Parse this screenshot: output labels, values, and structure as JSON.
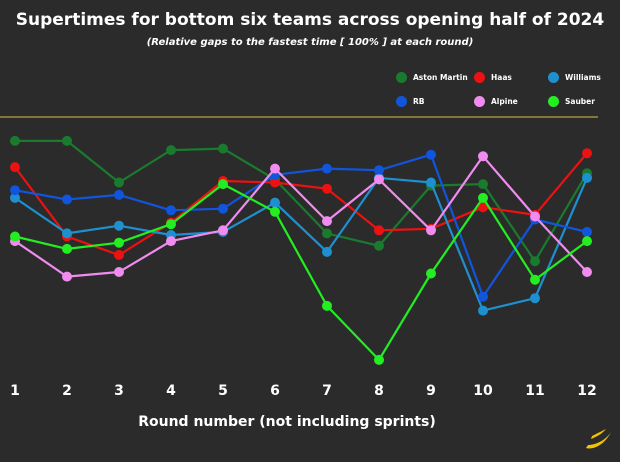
{
  "title": "Supertimes for bottom six teams across opening half of 2024",
  "subtitle": "(Relative gaps to the fastest time [ 100% ] at each round)",
  "xlabel": "Round number (not including sprints)",
  "chart_data": {
    "type": "line",
    "title": "Supertimes for bottom six teams across opening half of 2024",
    "subtitle": "(Relative gaps to the fastest time [ 100% ] at each round)",
    "xlabel": "Round number (not including sprints)",
    "ylabel": "",
    "x": [
      1,
      2,
      3,
      4,
      5,
      6,
      7,
      8,
      9,
      10,
      11,
      12
    ],
    "ylim": [
      101.75,
      100.0
    ],
    "legend_position": "top-right",
    "grid": false,
    "series": [
      {
        "name": "Aston Martin",
        "color": "#1a7a2e",
        "values": [
          100.2,
          100.2,
          100.47,
          100.26,
          100.25,
          100.45,
          100.8,
          100.88,
          100.49,
          100.48,
          100.98,
          100.41
        ]
      },
      {
        "name": "Haas",
        "color": "#ee1111",
        "values": [
          100.37,
          100.82,
          100.94,
          100.73,
          100.46,
          100.47,
          100.51,
          100.78,
          100.77,
          100.63,
          100.68,
          100.28
        ]
      },
      {
        "name": "Williams",
        "color": "#1e90d0",
        "values": [
          100.57,
          100.8,
          100.75,
          100.81,
          100.79,
          100.6,
          100.92,
          100.44,
          100.47,
          101.3,
          101.22,
          100.44
        ]
      },
      {
        "name": "RB",
        "color": "#1155dd",
        "values": [
          100.52,
          100.58,
          100.55,
          100.65,
          100.64,
          100.42,
          100.38,
          100.39,
          100.29,
          101.21,
          100.71,
          100.79
        ]
      },
      {
        "name": "Alpine",
        "color": "#f08cf0",
        "values": [
          100.85,
          101.08,
          101.05,
          100.85,
          100.78,
          100.38,
          100.72,
          100.45,
          100.78,
          100.3,
          100.69,
          101.05
        ]
      },
      {
        "name": "Sauber",
        "color": "#22ee22",
        "values": [
          100.82,
          100.9,
          100.86,
          100.74,
          100.48,
          100.66,
          101.27,
          101.62,
          101.06,
          100.57,
          101.1,
          100.85
        ]
      }
    ]
  },
  "colors": {
    "background": "#2b2b2b",
    "refline": "#d8c24a",
    "text": "#ffffff",
    "logo": "#f5c400"
  },
  "logo_icon": "swoosh-logo-icon"
}
